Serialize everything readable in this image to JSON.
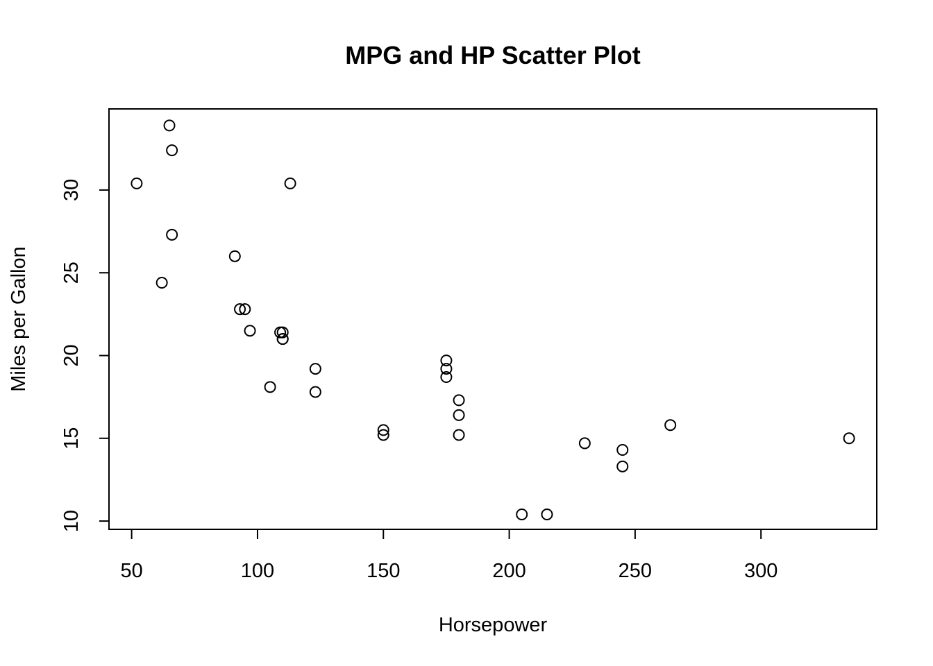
{
  "chart_data": {
    "type": "scatter",
    "title": "MPG and HP Scatter Plot",
    "xlabel": "Horsepower",
    "ylabel": "Miles per Gallon",
    "xlim": [
      41,
      346
    ],
    "ylim": [
      9.5,
      34.9
    ],
    "xticks": [
      50,
      100,
      150,
      200,
      250,
      300
    ],
    "yticks": [
      10,
      15,
      20,
      25,
      30
    ],
    "grid": false,
    "points": [
      {
        "x": 110,
        "y": 21.0
      },
      {
        "x": 110,
        "y": 21.0
      },
      {
        "x": 93,
        "y": 22.8
      },
      {
        "x": 110,
        "y": 21.4
      },
      {
        "x": 175,
        "y": 18.7
      },
      {
        "x": 105,
        "y": 18.1
      },
      {
        "x": 245,
        "y": 14.3
      },
      {
        "x": 62,
        "y": 24.4
      },
      {
        "x": 95,
        "y": 22.8
      },
      {
        "x": 123,
        "y": 19.2
      },
      {
        "x": 123,
        "y": 17.8
      },
      {
        "x": 180,
        "y": 16.4
      },
      {
        "x": 180,
        "y": 17.3
      },
      {
        "x": 180,
        "y": 15.2
      },
      {
        "x": 205,
        "y": 10.4
      },
      {
        "x": 215,
        "y": 10.4
      },
      {
        "x": 230,
        "y": 14.7
      },
      {
        "x": 66,
        "y": 32.4
      },
      {
        "x": 52,
        "y": 30.4
      },
      {
        "x": 65,
        "y": 33.9
      },
      {
        "x": 97,
        "y": 21.5
      },
      {
        "x": 150,
        "y": 15.5
      },
      {
        "x": 150,
        "y": 15.2
      },
      {
        "x": 245,
        "y": 13.3
      },
      {
        "x": 175,
        "y": 19.2
      },
      {
        "x": 66,
        "y": 27.3
      },
      {
        "x": 91,
        "y": 26.0
      },
      {
        "x": 113,
        "y": 30.4
      },
      {
        "x": 264,
        "y": 15.8
      },
      {
        "x": 175,
        "y": 19.7
      },
      {
        "x": 335,
        "y": 15.0
      },
      {
        "x": 109,
        "y": 21.4
      }
    ]
  }
}
